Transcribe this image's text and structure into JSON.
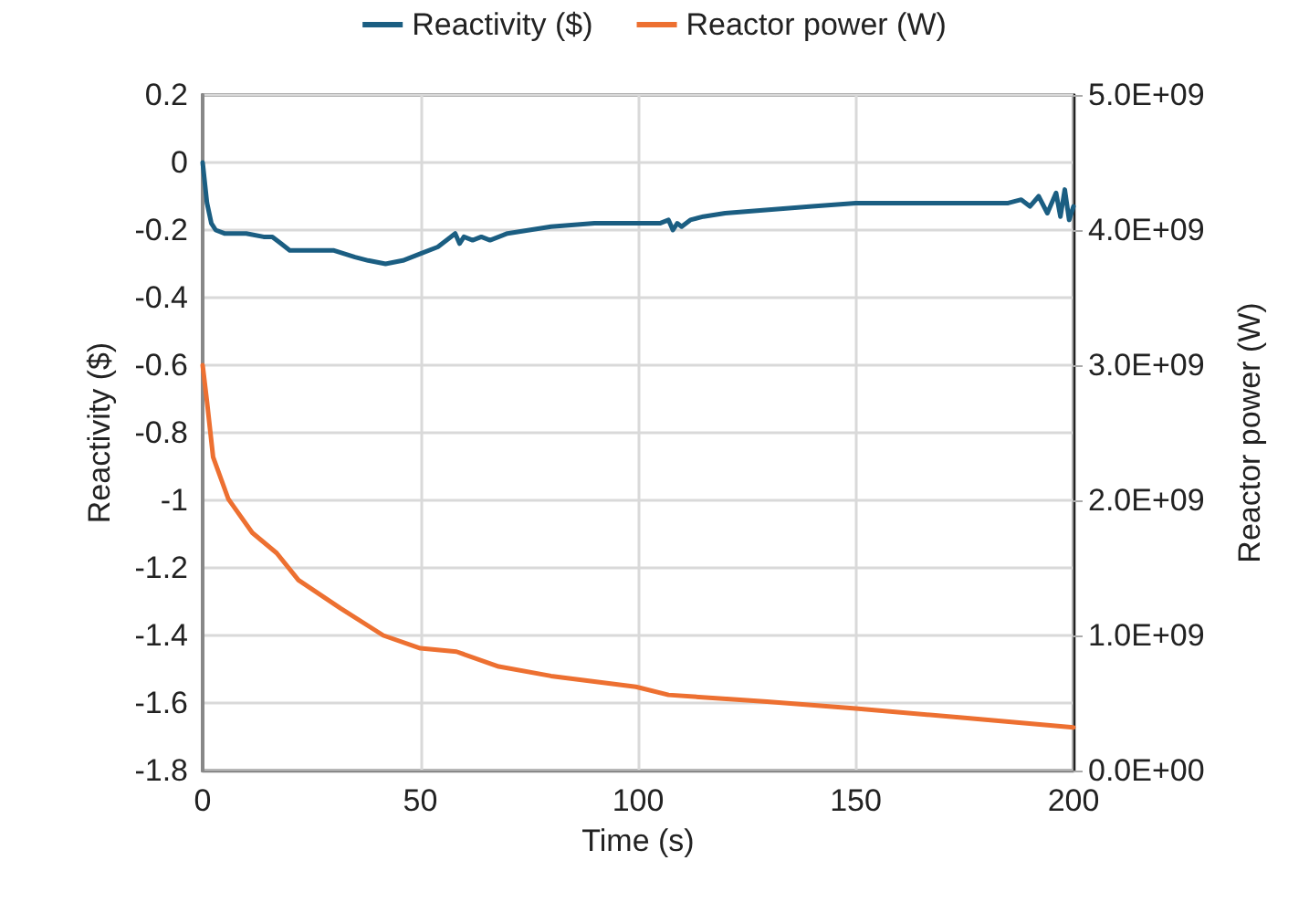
{
  "chart_data": {
    "type": "line",
    "xlabel": "Time (s)",
    "ylabel": "Reactivity ($)",
    "y2label": "Reactor power (W)",
    "xlim": [
      0,
      200
    ],
    "xticks": [
      0,
      50,
      100,
      150,
      200
    ],
    "ylim": [
      -1.8,
      0.2
    ],
    "yticks": [
      -1.8,
      -1.6,
      -1.4,
      -1.2,
      -1,
      -0.8,
      -0.6,
      -0.4,
      -0.2,
      0,
      0.2
    ],
    "y2lim": [
      0,
      5000000000
    ],
    "y2ticks": [
      {
        "value": 0,
        "label": "0.0E+00"
      },
      {
        "value": 1000000000,
        "label": "1.0E+09"
      },
      {
        "value": 2000000000,
        "label": "2.0E+09"
      },
      {
        "value": 3000000000,
        "label": "3.0E+09"
      },
      {
        "value": 4000000000,
        "label": "4.0E+09"
      },
      {
        "value": 5000000000,
        "label": "5.0E+09"
      }
    ],
    "grid": true,
    "legend": "top",
    "marker": "none",
    "line_style": "solid",
    "series": [
      {
        "name": "Reactivity ($)",
        "color": "#1b5e82",
        "x": [
          0,
          1,
          2,
          3,
          5,
          10,
          14,
          16,
          18,
          20,
          25,
          30,
          35,
          38,
          42,
          46,
          50,
          54,
          57,
          58,
          59,
          60,
          62,
          64,
          66,
          70,
          75,
          80,
          90,
          100,
          105,
          107,
          108,
          109,
          110,
          112,
          115,
          120,
          130,
          140,
          150,
          160,
          170,
          180,
          185,
          188,
          190,
          192,
          194,
          196,
          197,
          198,
          199,
          200
        ],
        "values": [
          0,
          -0.12,
          -0.18,
          -0.2,
          -0.21,
          -0.21,
          -0.22,
          -0.22,
          -0.24,
          -0.26,
          -0.26,
          -0.26,
          -0.28,
          -0.29,
          -0.3,
          -0.29,
          -0.27,
          -0.25,
          -0.22,
          -0.21,
          -0.24,
          -0.22,
          -0.23,
          -0.22,
          -0.23,
          -0.21,
          -0.2,
          -0.19,
          -0.18,
          -0.18,
          -0.18,
          -0.17,
          -0.2,
          -0.18,
          -0.19,
          -0.17,
          -0.16,
          -0.15,
          -0.14,
          -0.13,
          -0.12,
          -0.12,
          -0.12,
          -0.12,
          -0.12,
          -0.11,
          -0.13,
          -0.1,
          -0.15,
          -0.09,
          -0.16,
          -0.08,
          -0.17,
          -0.13
        ]
      },
      {
        "name": "Reactor power (W)",
        "color": "#ed7031",
        "axis": "y2",
        "x": [
          0,
          1,
          2.4,
          5.9,
          11.4,
          17,
          22,
          31.7,
          41.5,
          50,
          55,
          58.3,
          68,
          80,
          99.5,
          107,
          129.6,
          150,
          175,
          200
        ],
        "values": [
          3000000000,
          2730000000,
          2320000000,
          2010000000,
          1760000000,
          1610000000,
          1410000000,
          1200000000,
          1000000000,
          905000000,
          890000000,
          880000000,
          770000000,
          700000000,
          620000000,
          560000000,
          510000000,
          460000000,
          390000000,
          320000000
        ]
      }
    ]
  }
}
